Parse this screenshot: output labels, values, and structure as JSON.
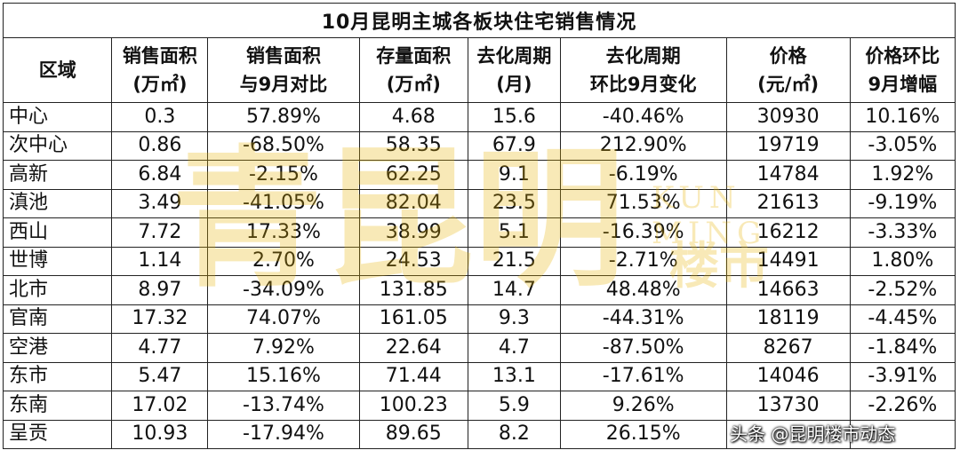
{
  "title": "10月昆明主城各板块住宅销售情况",
  "headers": [
    [
      "区域"
    ],
    [
      "销售面积",
      "(万㎡)"
    ],
    [
      "销售面积",
      "与9月对比"
    ],
    [
      "存量面积",
      "(万㎡)"
    ],
    [
      "去化周期",
      "(月)"
    ],
    [
      "去化周期",
      "环比9月变化"
    ],
    [
      "价格",
      "(元/㎡)"
    ],
    [
      "价格环比",
      "9月增幅"
    ]
  ],
  "rows": [
    [
      "中心",
      "0.3",
      "57.89%",
      "4.68",
      "15.6",
      "-40.46%",
      "30930",
      "10.16%"
    ],
    [
      "次中心",
      "0.86",
      "-68.50%",
      "58.35",
      "67.9",
      "212.90%",
      "19719",
      "-3.05%"
    ],
    [
      "高新",
      "6.84",
      "-2.15%",
      "62.25",
      "9.1",
      "-6.19%",
      "14784",
      "1.92%"
    ],
    [
      "滇池",
      "3.49",
      "-41.05%",
      "82.04",
      "23.5",
      "71.53%",
      "21613",
      "-9.19%"
    ],
    [
      "西山",
      "7.72",
      "17.33%",
      "38.99",
      "5.1",
      "-16.39%",
      "16212",
      "-3.33%"
    ],
    [
      "世博",
      "1.14",
      "2.70%",
      "24.53",
      "21.5",
      "-2.71%",
      "14491",
      "1.80%"
    ],
    [
      "北市",
      "8.97",
      "-34.09%",
      "131.85",
      "14.7",
      "48.48%",
      "14663",
      "-2.52%"
    ],
    [
      "官南",
      "17.32",
      "74.07%",
      "161.05",
      "9.3",
      "-44.31%",
      "18119",
      "-4.45%"
    ],
    [
      "空港",
      "4.77",
      "7.92%",
      "22.64",
      "4.7",
      "-87.50%",
      "8267",
      "-1.84%"
    ],
    [
      "东市",
      "5.47",
      "15.16%",
      "71.44",
      "13.1",
      "-17.61%",
      "14046",
      "-3.91%"
    ],
    [
      "东南",
      "17.02",
      "-13.74%",
      "100.23",
      "5.9",
      "9.26%",
      "13730",
      "-2.26%"
    ],
    [
      "呈贡",
      "10.93",
      "-17.94%",
      "89.65",
      "8.2",
      "26.15%",
      "",
      ""
    ]
  ],
  "watermark": {
    "main": "青昆明",
    "english": "KUN MING",
    "suffix": "楼市"
  },
  "credit": "头条 @昆明楼市动态",
  "colors": {
    "watermark": "#e8b400",
    "border": "#222222"
  }
}
